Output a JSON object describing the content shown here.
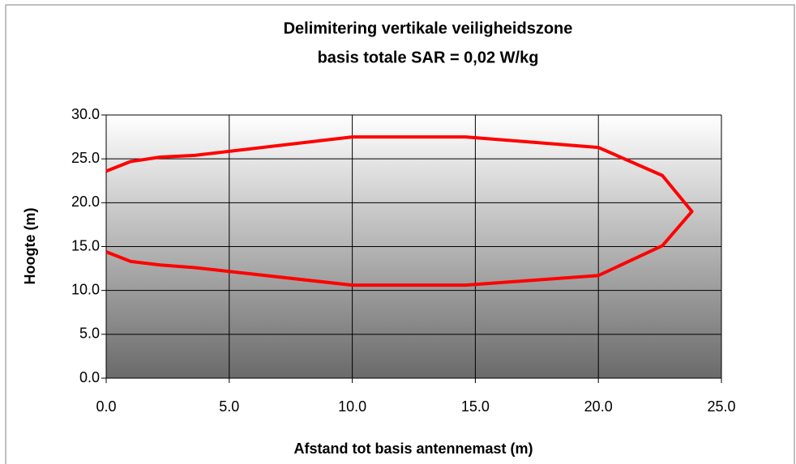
{
  "chart_data": {
    "type": "line",
    "title": "Delimitering vertikale veiligheidszone",
    "subtitle": "basis totale SAR =  0,02 W/kg",
    "x_label": "Afstand tot basis antennemast (m)",
    "y_label": "Hoogte (m)",
    "xlim": [
      0,
      25
    ],
    "xticks": [
      {
        "value": 0,
        "label": "0.0"
      },
      {
        "value": 5,
        "label": "5.0"
      },
      {
        "value": 10,
        "label": "10.0"
      },
      {
        "value": 15,
        "label": "15.0"
      },
      {
        "value": 20,
        "label": "20.0"
      },
      {
        "value": 25,
        "label": "25.0"
      }
    ],
    "ylim": [
      0,
      30
    ],
    "yticks": [
      {
        "value": 0,
        "label": "0.0"
      },
      {
        "value": 5,
        "label": "5.0"
      },
      {
        "value": 10,
        "label": "10.0"
      },
      {
        "value": 15,
        "label": "15.0"
      },
      {
        "value": 20,
        "label": "20.0"
      },
      {
        "value": 25,
        "label": "25.0"
      },
      {
        "value": 30,
        "label": "30.0"
      }
    ],
    "grid": true,
    "x": [
      0,
      1,
      2.2,
      3.6,
      10,
      14.6,
      20,
      22.6,
      23.8,
      22.6,
      20,
      14.6,
      10,
      3.6,
      2.2,
      1,
      0
    ],
    "series": [
      {
        "color": "#ff0000",
        "values": [
          23.6,
          24.7,
          25.2,
          25.4,
          27.5,
          27.5,
          26.3,
          23.1,
          19.0,
          15.1,
          11.7,
          10.6,
          10.6,
          12.6,
          12.9,
          13.3,
          14.4
        ]
      }
    ]
  }
}
